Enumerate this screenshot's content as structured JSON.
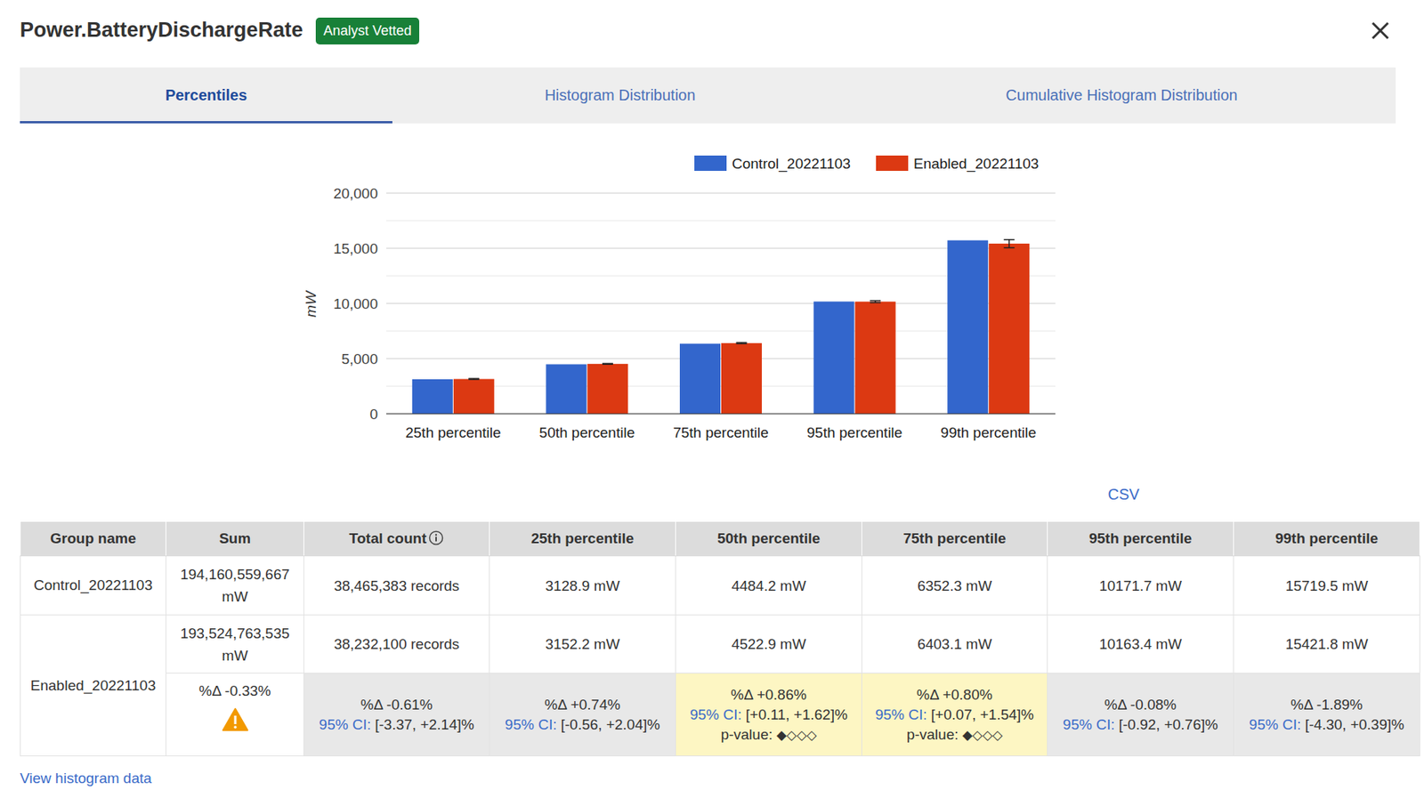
{
  "header": {
    "title": "Power.BatteryDischargeRate",
    "badge": "Analyst Vetted"
  },
  "tabs": [
    {
      "label": "Percentiles",
      "active": true
    },
    {
      "label": "Histogram Distribution",
      "active": false
    },
    {
      "label": "Cumulative Histogram Distribution",
      "active": false
    }
  ],
  "chart_data": {
    "type": "bar",
    "categories": [
      "25th percentile",
      "50th percentile",
      "75th percentile",
      "95th percentile",
      "99th percentile"
    ],
    "series": [
      {
        "name": "Control_20221103",
        "color": "#3366cc",
        "values": [
          3128.9,
          4484.2,
          6352.3,
          10171.7,
          15719.5
        ]
      },
      {
        "name": "Enabled_20221103",
        "color": "#dc3912",
        "values": [
          3152.2,
          4522.9,
          6403.1,
          10163.4,
          15421.8
        ],
        "error_low": [
          3111.4,
          4489.1,
          6356.7,
          10078.1,
          15043.6
        ],
        "error_high": [
          3192.7,
          4556.8,
          6450.1,
          10249.0,
          15780.8
        ]
      }
    ],
    "y_label": "mW",
    "ylim": [
      0,
      20000
    ],
    "yticks": [
      0,
      {
        "value": 5000,
        "label": "5,000"
      },
      {
        "value": 10000,
        "label": "10,000"
      },
      {
        "value": 15000,
        "label": "15,000"
      },
      {
        "value": 20000,
        "label": "20,000"
      }
    ],
    "grid": true,
    "legend": "top"
  },
  "links": {
    "csv": "CSV",
    "view_histogram": "View histogram data"
  },
  "table": {
    "columns": [
      "Group name",
      "Sum",
      "Total count",
      "25th percentile",
      "50th percentile",
      "75th percentile",
      "95th percentile",
      "99th percentile"
    ],
    "rows": [
      {
        "group": "Control_20221103",
        "cells": [
          "194,160,559,667 mW",
          "38,465,383 records",
          "3128.9 mW",
          "4484.2 mW",
          "6352.3 mW",
          "10171.7 mW",
          "15719.5 mW"
        ]
      },
      {
        "group": "Enabled_20221103",
        "cells": [
          "193,524,763,535 mW",
          "38,232,100 records",
          "3152.2 mW",
          "4522.9 mW",
          "6403.1 mW",
          "10163.4 mW",
          "15421.8 mW"
        ],
        "deltas": [
          {
            "delta": "%Δ -0.33%",
            "warning": true
          },
          {
            "delta": "%Δ -0.61%",
            "ci_label": "95% CI:",
            "ci": "[-3.37, +2.14]%"
          },
          {
            "delta": "%Δ +0.74%",
            "ci_label": "95% CI:",
            "ci": "[-0.56, +2.04]%"
          },
          {
            "delta": "%Δ +0.86%",
            "ci_label": "95% CI:",
            "ci": "[+0.11, +1.62]%",
            "p_value_label": "p-value:",
            "p_value": "◆◇◇◇",
            "significant": true
          },
          {
            "delta": "%Δ +0.80%",
            "ci_label": "95% CI:",
            "ci": "[+0.07, +1.54]%",
            "p_value_label": "p-value:",
            "p_value": "◆◇◇◇",
            "significant": true
          },
          {
            "delta": "%Δ -0.08%",
            "ci_label": "95% CI:",
            "ci": "[-0.92, +0.76]%"
          },
          {
            "delta": "%Δ -1.89%",
            "ci_label": "95% CI:",
            "ci": "[-4.30, +0.39]%"
          }
        ]
      }
    ]
  }
}
